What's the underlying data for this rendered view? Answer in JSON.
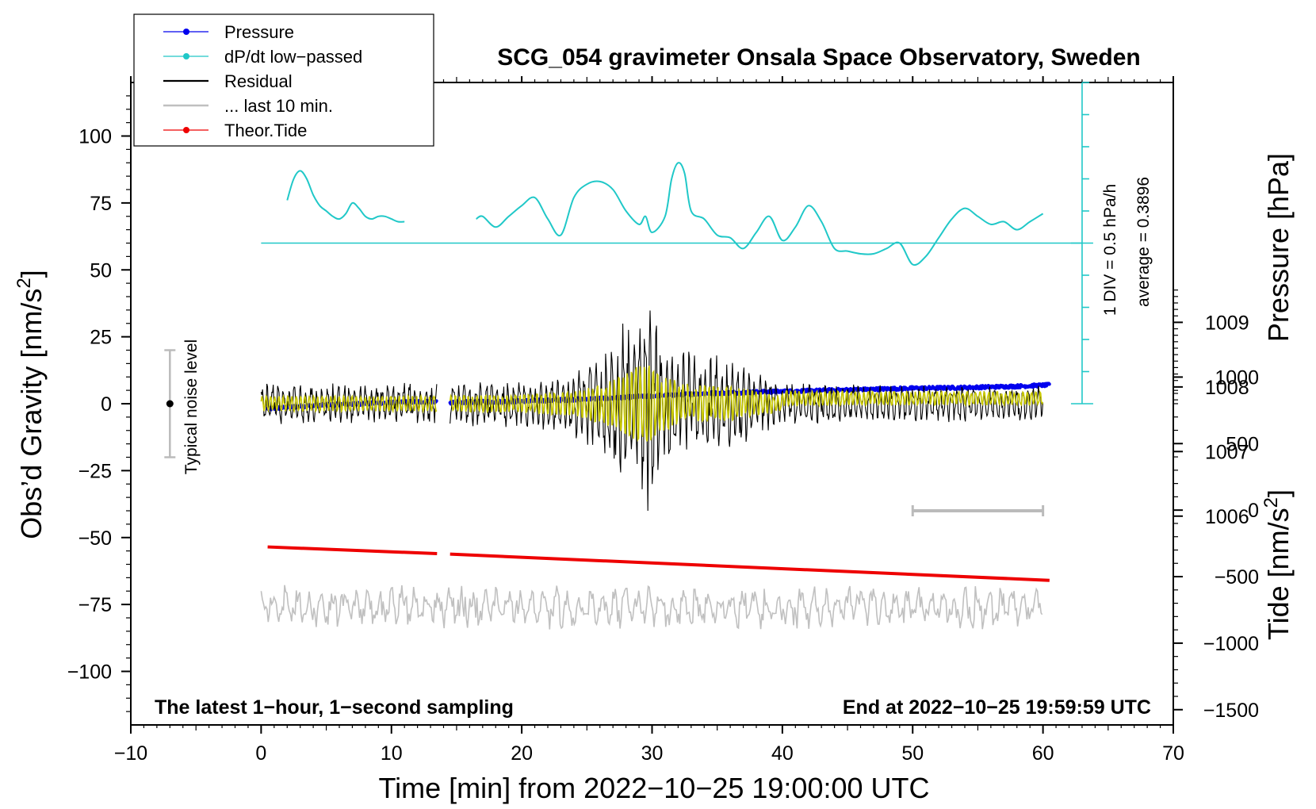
{
  "chart_data": {
    "type": "line",
    "title": "SCG_054 gravimeter Onsala Space Observatory, Sweden",
    "xlabel": "Time [min] from 2022−10−25 19:00:00 UTC",
    "ylabel_main": "Obs’d Gravity [nm/s",
    "ylabel_unit_sup": "2",
    "ylabel_main_close": "]",
    "ylabel_pressure": "Pressure [hPa]",
    "ylabel_tide": "Tide [nm/s",
    "ylabel_tide_close": "]",
    "xlim": [
      -10,
      70
    ],
    "ylim": [
      -120,
      120
    ],
    "x_ticks": [
      -10,
      0,
      10,
      20,
      30,
      40,
      50,
      60,
      70
    ],
    "x_tick_labels": [
      "−10",
      "0",
      "10",
      "20",
      "30",
      "40",
      "50",
      "60",
      "70"
    ],
    "y_ticks": [
      -100,
      -75,
      -50,
      -25,
      0,
      25,
      50,
      75,
      100
    ],
    "y_tick_labels": [
      "−100",
      "−75",
      "−50",
      "−25",
      "0",
      "25",
      "50",
      "75",
      "100"
    ],
    "pressure_axis": {
      "unit_per_nm": 24.133,
      "offset_nm": -24319.8,
      "ticks": [
        1006,
        1007,
        1008,
        1009
      ],
      "tick_labels": [
        "1006",
        "1007",
        "1008",
        "1009"
      ]
    },
    "tide_axis": {
      "unit_per_nm": 0.0497,
      "offset_nm": -39.75,
      "ticks": [
        -1500,
        -1000,
        -500,
        0,
        500,
        1000
      ],
      "tick_labels": [
        "−1500",
        "−1000",
        "−500",
        "0",
        "500",
        "1000"
      ]
    },
    "legend": {
      "position": "top-left",
      "entries": [
        {
          "label": "Pressure",
          "color": "#0000ee",
          "marker": true
        },
        {
          "label": "dP/dt low−passed",
          "color": "#20c8c8",
          "marker": true
        },
        {
          "label": "Residual",
          "color": "#000000",
          "marker": false
        },
        {
          "label": "... last 10 min.",
          "color": "#c0c0c0",
          "marker": false
        },
        {
          "label": "Theor.Tide",
          "color": "#ee0000",
          "marker": true
        }
      ]
    },
    "series": [
      {
        "name": "Pressure",
        "unit": "hPa",
        "color": "#0000ee",
        "segments": [
          {
            "x": [
              0.5,
              3,
              6,
              9,
              12,
              13.5
            ],
            "y": [
              1007.66,
              1007.7,
              1007.73,
              1007.75,
              1007.77,
              1007.77
            ]
          },
          {
            "x": [
              14.5,
              18,
              22,
              26,
              30,
              34,
              38,
              42,
              46,
              50,
              54,
              58,
              60.5
            ],
            "y": [
              1007.76,
              1007.77,
              1007.79,
              1007.82,
              1007.86,
              1007.9,
              1007.92,
              1007.94,
              1007.96,
              1007.98,
              1007.99,
              1008.01,
              1008.03
            ]
          }
        ]
      },
      {
        "name": "dP/dt low−passed",
        "unit": "nm/s2 (plot scale, baseline 60)",
        "color": "#20c8c8",
        "segments": [
          {
            "x": [
              2,
              2.5,
              3,
              3.5,
              4,
              4.5,
              5,
              5.5,
              6,
              6.5,
              7,
              7.5,
              8,
              8.5,
              9,
              9.5,
              10,
              10.5,
              11
            ],
            "y": [
              76,
              84,
              87,
              84,
              78,
              74,
              72,
              70,
              69,
              71,
              75,
              73,
              70,
              69,
              70,
              70,
              69,
              68,
              68
            ]
          },
          {
            "x": [
              16.5,
              17,
              18,
              19,
              20,
              21,
              22,
              23,
              24,
              25,
              26,
              27,
              28,
              29,
              29.5,
              30,
              31,
              31.5,
              32,
              32.5,
              33,
              34,
              35,
              36,
              37,
              38,
              39,
              40,
              41,
              42,
              43,
              44,
              45,
              46,
              47,
              48,
              49,
              50,
              51,
              52,
              53,
              54,
              55,
              56,
              57,
              58,
              59,
              60
            ],
            "y": [
              69,
              70,
              66,
              70,
              74,
              77,
              69,
              63,
              77,
              82,
              83,
              80,
              72,
              67,
              70,
              64,
              70,
              84,
              90,
              86,
              72,
              69,
              63,
              62,
              58,
              64,
              70,
              61,
              66,
              74,
              68,
              58,
              57,
              56,
              56,
              58,
              60,
              52,
              55,
              62,
              69,
              73,
              70,
              67,
              68,
              65,
              68,
              71
            ]
          }
        ]
      },
      {
        "name": "dP/dt baseline",
        "color": "#20c8c8",
        "x": [
          0,
          63
        ],
        "y": [
          60,
          60
        ]
      },
      {
        "name": "Theor.Tide",
        "unit": "nm/s2",
        "color": "#ee0000",
        "segments": [
          {
            "x": [
              0.5,
              13.5
            ],
            "y": [
              -53.5,
              -56.0
            ]
          },
          {
            "x": [
              14.5,
              60.5
            ],
            "y": [
              -56.2,
              -66.0
            ]
          }
        ]
      },
      {
        "name": "Residual",
        "unit": "nm/s2",
        "color": "#000000",
        "envelope_x": [
          0,
          10,
          20,
          24,
          27,
          29.5,
          31,
          33,
          36,
          40,
          50,
          60
        ],
        "envelope_amp": [
          8,
          8,
          9,
          13,
          25,
          45,
          28,
          20,
          18,
          8,
          7,
          7
        ],
        "gap": [
          13.5,
          14.5
        ]
      },
      {
        "name": "Residual low−passed",
        "color": "#c8c800"
      },
      {
        "name": "... last 10 min.",
        "color": "#c0c0c0",
        "baseline": -76,
        "amplitude": 7
      }
    ],
    "annotations": {
      "noise_label": "Typical noise level",
      "noise_bar": {
        "x": -7,
        "y_min": -20,
        "y_max": 20,
        "center": 0
      },
      "ten_min_bar": {
        "x_start": 50,
        "x_end": 60,
        "y": -40
      },
      "div_label": "1 DIV = 0.5 hPa/h",
      "average_label": "average = 0.3896",
      "pressure_scale_axis": {
        "x": 63,
        "y_min": 0,
        "y_max": 120,
        "y_baseline": 60,
        "div": 12
      },
      "bottom_left_note": "The latest 1−hour, 1−second sampling",
      "bottom_right_note": "End at 2022−10−25 19:59:59 UTC"
    }
  }
}
